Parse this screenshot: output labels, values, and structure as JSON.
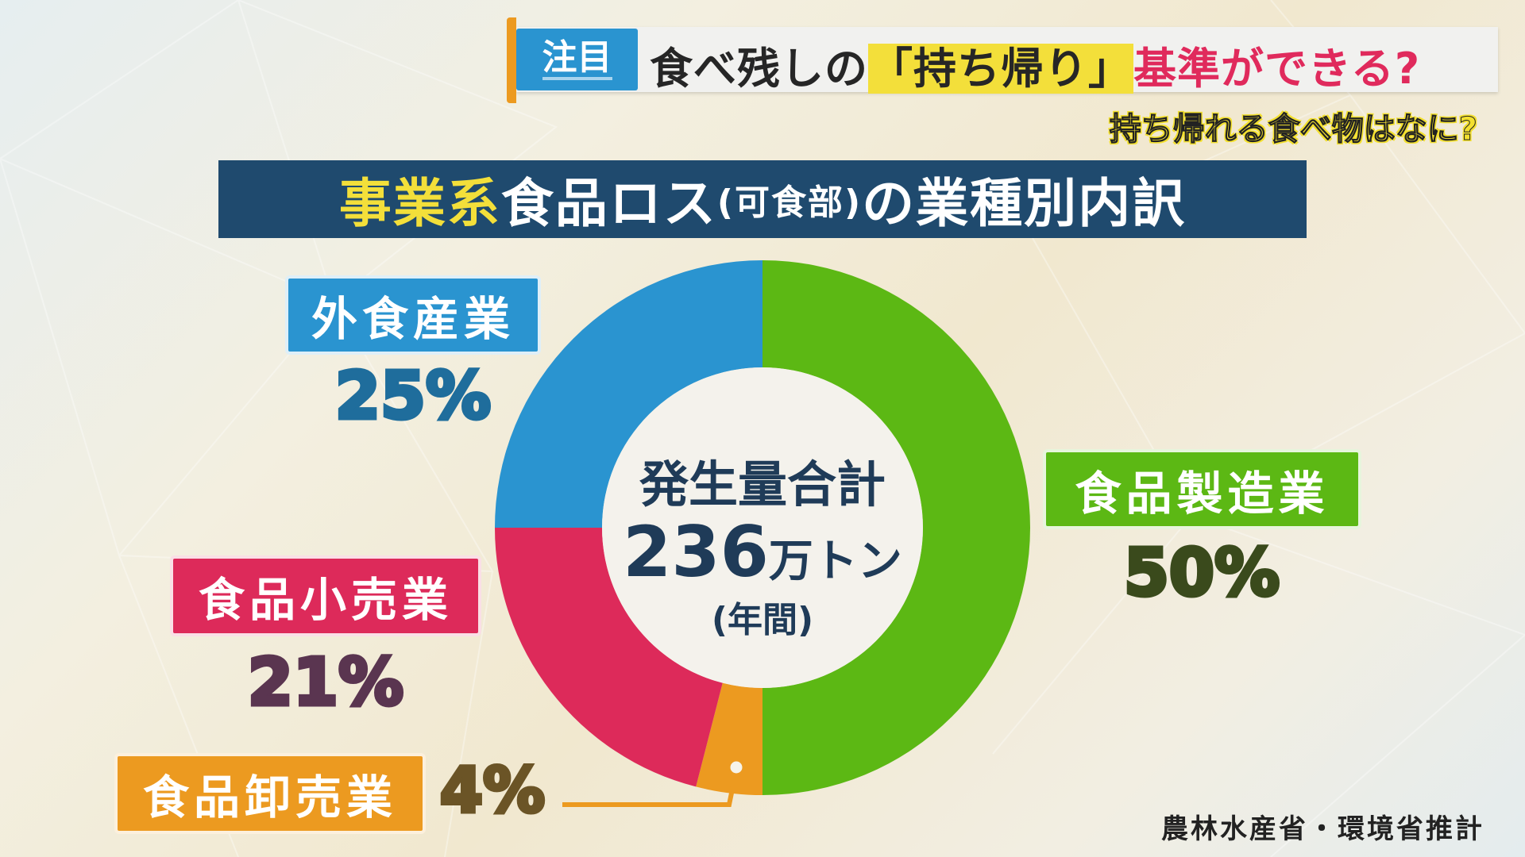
{
  "header": {
    "tag": "注目",
    "title_part1": "食べ残しの",
    "title_highlight": "「持ち帰り」",
    "title_part2": "基準ができる?",
    "subtitle": "持ち帰れる食べ物はなに?"
  },
  "heading": {
    "part_yellow": "事業系",
    "part_white1": "食品ロス",
    "part_small": "(可食部)",
    "part_white2": "の業種別内訳"
  },
  "center": {
    "line1": "発生量合計",
    "total": "236",
    "unit": "万トン",
    "period": "(年間)"
  },
  "source": "農林水産省・環境省推計",
  "chart_data": {
    "type": "pie",
    "variant": "donut",
    "title": "事業系食品ロス(可食部)の業種別内訳",
    "total_label": "発生量合計 236万トン (年間)",
    "start": "12 o'clock, clockwise",
    "slices": [
      {
        "label": "食品製造業",
        "value": 50,
        "value_label": "50%",
        "color": "#5cb814",
        "text_outline": "#3a4a1c"
      },
      {
        "label": "食品卸売業",
        "value": 4,
        "value_label": "4%",
        "color": "#ec9a20",
        "text_outline": "#6b5426"
      },
      {
        "label": "食品小売業",
        "value": 21,
        "value_label": "21%",
        "color": "#dd2a5a",
        "text_outline": "#5a3550"
      },
      {
        "label": "外食産業",
        "value": 25,
        "value_label": "25%",
        "color": "#2a94d0",
        "text_outline": "#1f6d9c"
      }
    ]
  }
}
